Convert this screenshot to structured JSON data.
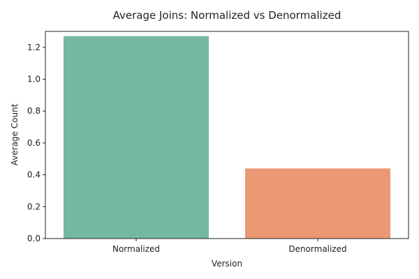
{
  "chart_data": {
    "type": "bar",
    "title": "Average Joins: Normalized vs Denormalized",
    "xlabel": "Version",
    "ylabel": "Average Count",
    "categories": [
      "Normalized",
      "Denormalized"
    ],
    "values": [
      1.27,
      0.44
    ],
    "colors": [
      "#75b8a2",
      "#ea9974"
    ],
    "ylim": [
      0,
      1.3
    ],
    "yticks": [
      0.0,
      0.2,
      0.4,
      0.6,
      0.8,
      1.0,
      1.2
    ],
    "ytick_labels": [
      "0.0",
      "0.2",
      "0.4",
      "0.6",
      "0.8",
      "1.0",
      "1.2"
    ],
    "grid": false,
    "legend": "none"
  }
}
